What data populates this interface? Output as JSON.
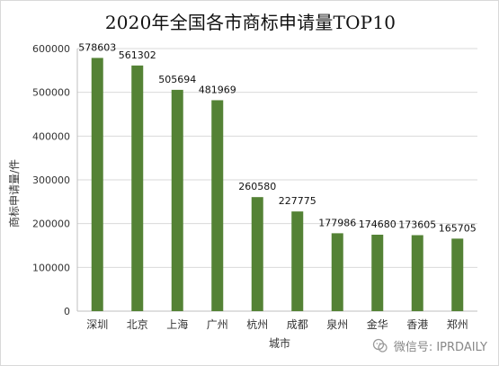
{
  "chart_data": {
    "type": "bar",
    "title": "2020年全国各市商标申请量TOP10",
    "xlabel": "城市",
    "ylabel": "商标申请量/件",
    "categories": [
      "深圳",
      "北京",
      "上海",
      "广州",
      "杭州",
      "成都",
      "泉州",
      "金华",
      "香港",
      "郑州"
    ],
    "values": [
      578603,
      561302,
      505694,
      481969,
      260580,
      227775,
      177986,
      174680,
      173605,
      165705
    ],
    "data_labels": [
      "578603",
      "561302",
      "505694",
      "481969",
      "260580",
      "227775",
      "177986",
      "174680",
      "173605",
      "165705"
    ],
    "ylim": [
      0,
      600000
    ],
    "yticks": [
      0,
      100000,
      200000,
      300000,
      400000,
      500000,
      600000
    ],
    "ytick_labels": [
      "0",
      "100000",
      "200000",
      "300000",
      "400000",
      "500000",
      "600000"
    ],
    "grid": "horizontal",
    "legend": "none",
    "bar_color": "#548235"
  },
  "watermark": {
    "text": "微信号: IPRDAILY",
    "icon": "wechat-icon"
  }
}
